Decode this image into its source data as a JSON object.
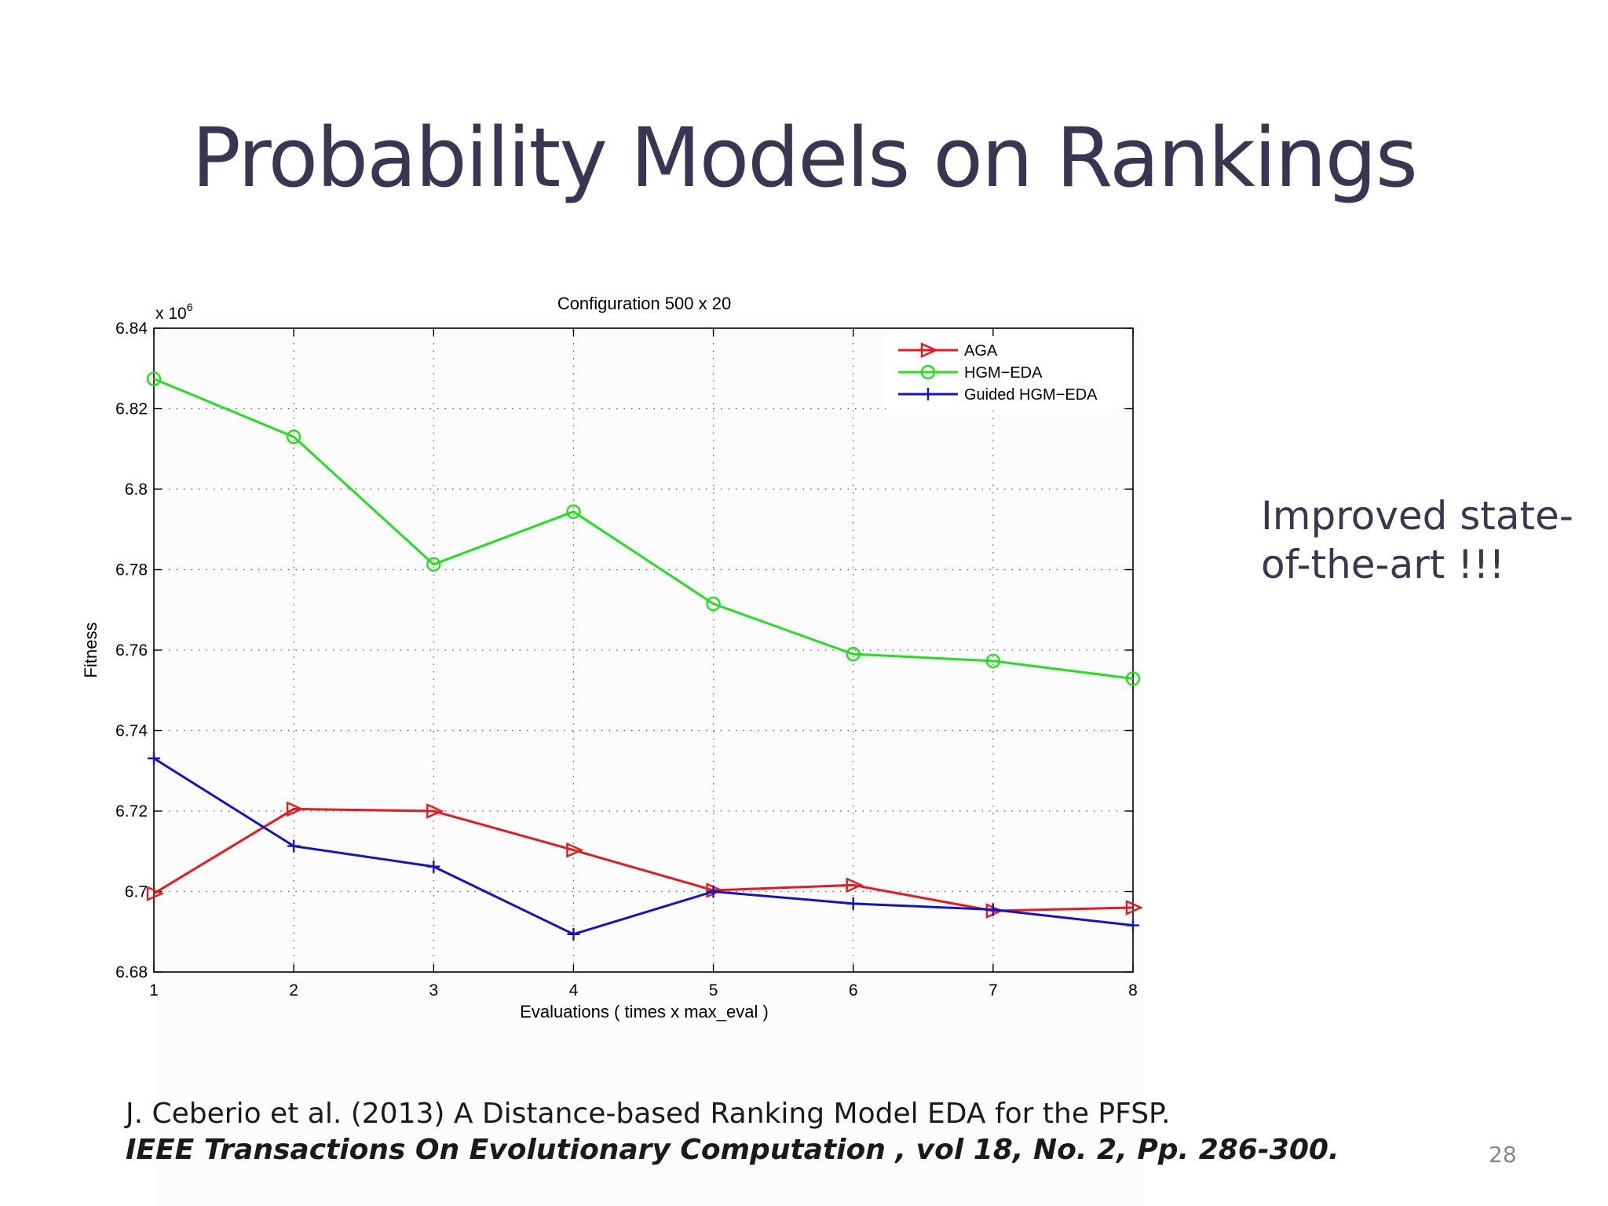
{
  "slide": {
    "title": "Probability Models on Rankings",
    "side_note_line1": "Improved state-",
    "side_note_line2": "of-the-art !!!",
    "citation_line1": "J. Ceberio et al. (2013) A Distance-based Ranking Model EDA for the PFSP.",
    "citation_journal": "IEEE Transactions On Evolutionary Computation",
    "citation_details": " , vol 18, No. 2, Pp. 286-300.",
    "page_number": "28"
  },
  "chart_data": {
    "type": "line",
    "title": "Configuration 500 x 20",
    "xlabel": "Evaluations ( times x max_eval )",
    "ylabel": "Fitness",
    "y_multiplier_base": "x 10",
    "y_multiplier_exp": "6",
    "xlim": [
      1,
      8
    ],
    "ylim": [
      6.68,
      6.84
    ],
    "x_ticks": [
      1,
      2,
      3,
      4,
      5,
      6,
      7,
      8
    ],
    "x_tick_labels": [
      "1",
      "2",
      "3",
      "4",
      "5",
      "6",
      "7",
      "8"
    ],
    "y_ticks": [
      6.68,
      6.7,
      6.72,
      6.74,
      6.76,
      6.78,
      6.8,
      6.82,
      6.84
    ],
    "y_tick_labels": [
      "6.68",
      "6.7",
      "6.72",
      "6.74",
      "6.76",
      "6.78",
      "6.8",
      "6.82",
      "6.84"
    ],
    "grid": true,
    "legend_position": "top-right",
    "x": [
      1,
      2,
      3,
      4,
      5,
      6,
      7,
      8
    ],
    "series": [
      {
        "name": "AGA",
        "color": "#e8191d",
        "marker": "triangle-right",
        "values": [
          6.6995,
          6.7205,
          6.72,
          6.7103,
          6.7003,
          6.7016,
          6.6952,
          6.696
        ]
      },
      {
        "name": "HGM−EDA",
        "color": "#22e01e",
        "marker": "circle",
        "values": [
          6.8274,
          6.813,
          6.7813,
          6.7944,
          6.7715,
          6.759,
          6.7573,
          6.7529
        ]
      },
      {
        "name": "Guided HGM−EDA",
        "color": "#1313c8",
        "marker": "plus",
        "values": [
          6.7331,
          6.7113,
          6.7062,
          6.6894,
          6.7,
          6.697,
          6.6955,
          6.6916
        ]
      }
    ]
  }
}
